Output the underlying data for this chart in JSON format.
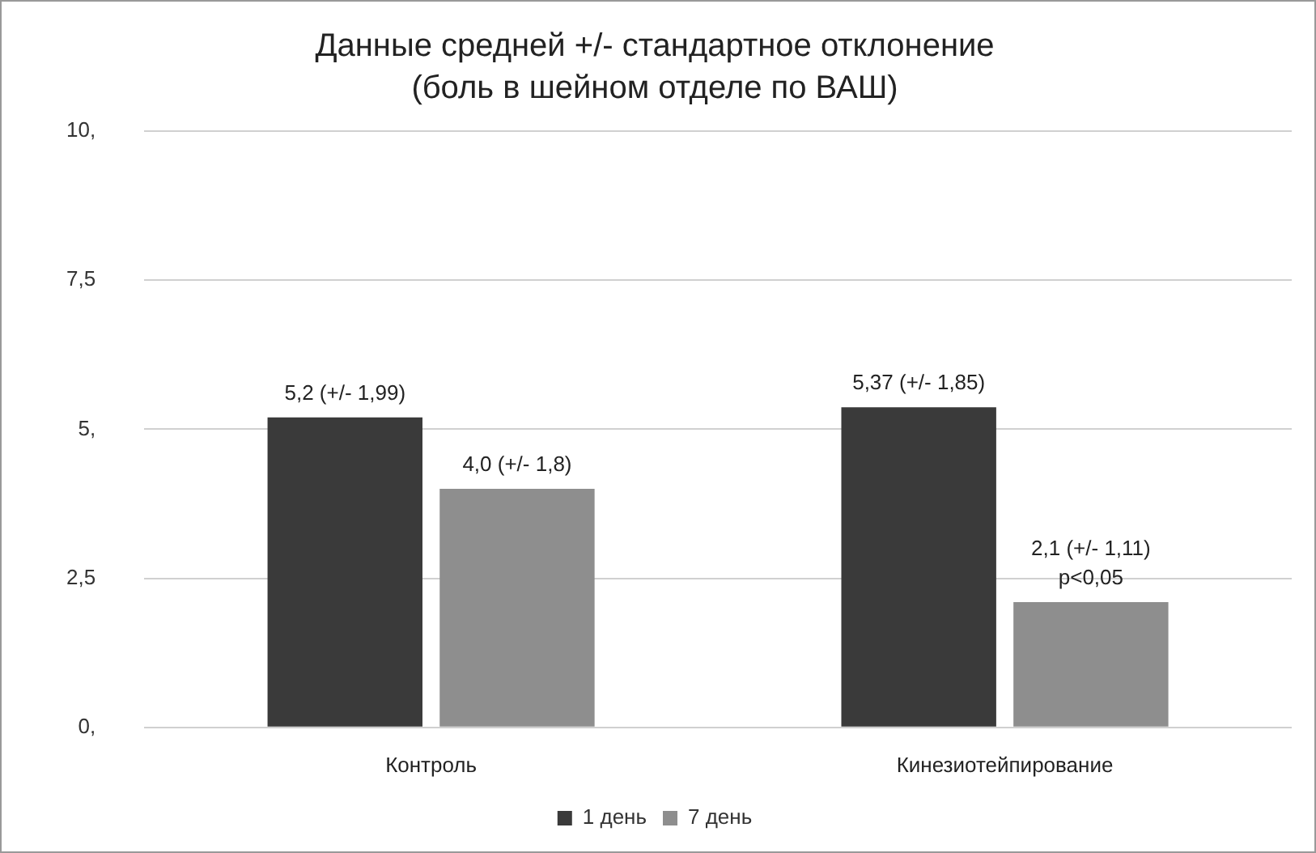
{
  "chart_data": {
    "type": "bar",
    "title": "Данные средней +/- стандартное отклонение",
    "subtitle": "(боль в шейном отделе по ВАШ)",
    "categories": [
      "Контроль",
      "Кинезиотейпирование"
    ],
    "series": [
      {
        "name": "1 день",
        "color": "#3a3a3a",
        "values": [
          5.2,
          5.37
        ],
        "value_labels": [
          "5,2 (+/- 1,99)",
          "5,37 (+/- 1,85)"
        ]
      },
      {
        "name": "7 день",
        "color": "#8e8e8e",
        "values": [
          4.0,
          2.1
        ],
        "value_labels": [
          "4,0 (+/- 1,8)",
          "2,1 (+/- 1,11)"
        ]
      }
    ],
    "annotations": [
      "p<0,05"
    ],
    "ylim": [
      0,
      10
    ],
    "yticks": [
      {
        "value": 0,
        "label": "0,"
      },
      {
        "value": 2.5,
        "label": "2,5"
      },
      {
        "value": 5,
        "label": "5,"
      },
      {
        "value": 7.5,
        "label": "7,5"
      },
      {
        "value": 10,
        "label": "10,"
      }
    ],
    "grid": "y",
    "legend": "bottom"
  }
}
